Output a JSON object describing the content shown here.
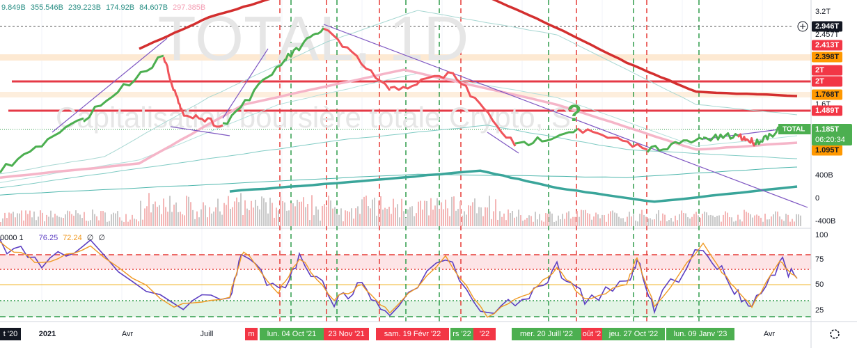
{
  "legend_values": [
    "9.849B",
    "355.546B",
    "239.223B",
    "174.92B",
    "84.607B",
    "297.385B"
  ],
  "watermark": {
    "symbol": "TOTAL, 1D",
    "description": "Capitalisation boursière totale Crypto, S"
  },
  "price_scale": [
    {
      "text": "3.2T",
      "style": "plain"
    },
    {
      "text": "2.946T",
      "style": "black"
    },
    {
      "text": "2.457T",
      "style": "plain"
    },
    {
      "text": "2.413T",
      "style": "red"
    },
    {
      "text": "2.398T",
      "style": "orange"
    },
    {
      "text": "2T",
      "style": "red"
    },
    {
      "text": "2T",
      "style": "red"
    },
    {
      "text": "1.768T",
      "style": "orange"
    },
    {
      "text": "1.6T",
      "style": "plain"
    },
    {
      "text": "1.489T",
      "style": "red"
    },
    {
      "text": "1.095T",
      "style": "orange"
    },
    {
      "text": "400B",
      "style": "plain"
    },
    {
      "text": "0",
      "style": "plain"
    },
    {
      "text": "-400B",
      "style": "plain"
    }
  ],
  "symbol_badge": {
    "name": "TOTAL",
    "price": "1.185T",
    "countdown": "06:20:34"
  },
  "rsi": {
    "legend": [
      "0000 1",
      "76.25",
      "72.24",
      "∅",
      "∅"
    ],
    "scale": [
      "100",
      "75",
      "50",
      "25"
    ]
  },
  "time_axis": [
    {
      "text": "t '20",
      "style": "dark"
    },
    {
      "text": "2021",
      "style": "bold"
    },
    {
      "text": "Avr",
      "style": "plain"
    },
    {
      "text": "Juill",
      "style": "plain"
    },
    {
      "text": "m",
      "style": "red"
    },
    {
      "text": "lun. 04 Oct '21",
      "style": "green"
    },
    {
      "text": "23 Nov '21",
      "style": "red"
    },
    {
      "text": "sam. 19 Févr '22",
      "style": "red"
    },
    {
      "text": "rs '22",
      "style": "green"
    },
    {
      "text": "'22",
      "style": "red"
    },
    {
      "text": "mer. 20 Juill '22",
      "style": "green"
    },
    {
      "text": "oût '2",
      "style": "red"
    },
    {
      "text": "jeu. 27 Oct '22",
      "style": "green"
    },
    {
      "text": "lun. 09 Janv '23",
      "style": "green"
    },
    {
      "text": "Avr",
      "style": "plain"
    }
  ]
}
